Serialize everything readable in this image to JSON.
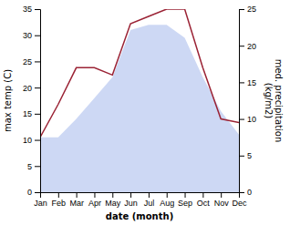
{
  "chart_data": {
    "type": "line",
    "categories": [
      "Jan",
      "Feb",
      "Mar",
      "Apr",
      "May",
      "Jun",
      "Jul",
      "Aug",
      "Sep",
      "Oct",
      "Nov",
      "Dec"
    ],
    "series": [
      {
        "type": "area",
        "color": "#b8c8f0",
        "values": [
          10.5,
          10.5,
          14.0,
          18.0,
          22.0,
          31.0,
          32.0,
          32.0,
          29.5,
          22.0,
          15.5,
          11.0
        ]
      },
      {
        "type": "line",
        "axis": "y2",
        "color": "#9b2335",
        "values": [
          7.5,
          12.0,
          17.0,
          17.0,
          16.0,
          23.0,
          24.0,
          25.0,
          25.0,
          17.0,
          10.0,
          9.5
        ]
      }
    ],
    "x_label": "date (month)",
    "y_label": "max temp (C)",
    "y2_label": "med. precipitation\n(kg/m2)",
    "ylim": [
      0,
      35
    ],
    "yticks": [
      0,
      5,
      10,
      15,
      20,
      25,
      30,
      35
    ],
    "y2lim": [
      0,
      25
    ],
    "y2ticks": [
      0,
      5,
      10,
      15,
      20,
      25
    ],
    "grid": false
  }
}
